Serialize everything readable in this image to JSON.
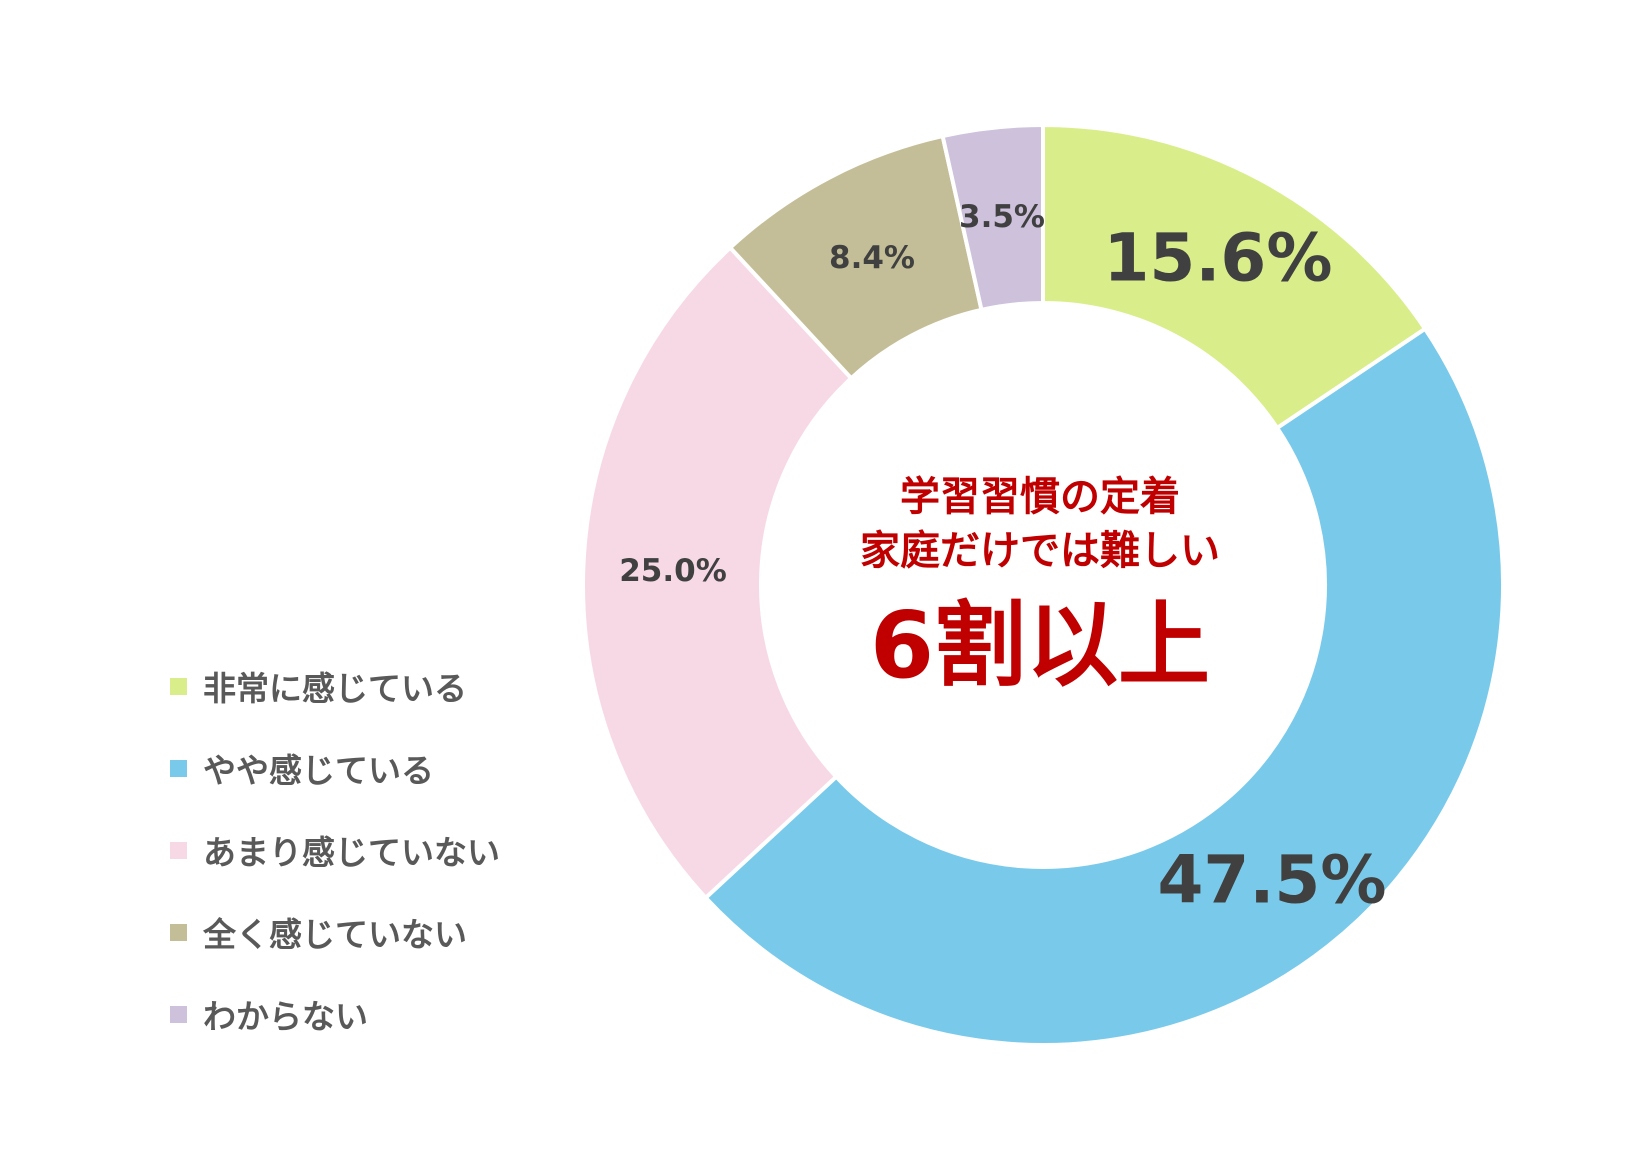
{
  "chart_data": {
    "type": "pie",
    "variant": "donut",
    "categories": [
      "非常に感じている",
      "やや感じている",
      "あまり感じていない",
      "全く感じていない",
      "わからない"
    ],
    "values": [
      15.6,
      47.5,
      25.0,
      8.4,
      3.5
    ],
    "data_labels": [
      "15.6%",
      "47.5%",
      "25.0%",
      "8.4%",
      "3.5%"
    ],
    "colors": [
      "#d9ee8a",
      "#79caea",
      "#f7d9e6",
      "#c4be98",
      "#cdc1dc"
    ],
    "legend_position": "left-bottom",
    "start_angle": "top",
    "direction": "clockwise"
  },
  "center": {
    "line1": "学習習慣の定着",
    "line2": "家庭だけでは難しい",
    "big": "6割以上"
  },
  "label_color": "#404040",
  "accent_color": "#c00000"
}
